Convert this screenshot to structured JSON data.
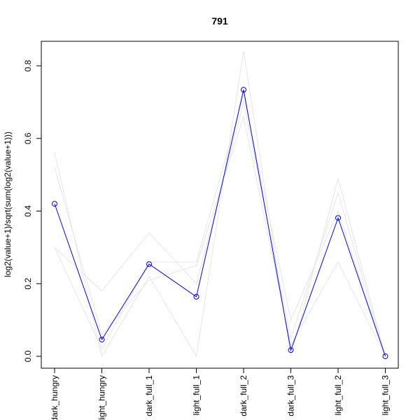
{
  "chart_data": {
    "type": "line",
    "title": "791",
    "xlabel": "",
    "ylabel": "log2(value+1)/sqrt(sum(log2(value+1)))",
    "categories": [
      "dark_hungry",
      "light_hungry",
      "dark_full_1",
      "light_full_1",
      "dark_full_2",
      "dark_full_3",
      "light_full_2",
      "light_full_3"
    ],
    "ylim": [
      0.0,
      0.8
    ],
    "yticks": [
      "0.0",
      "0.2",
      "0.4",
      "0.6",
      "0.8"
    ],
    "grid": false,
    "legend": "none",
    "highlight_color": "#0000ff",
    "background_color": "#e6e6e6",
    "series": [
      {
        "values": [
          0.42,
          0.046,
          0.254,
          0.164,
          0.734,
          0.017,
          0.381,
          0.0
        ],
        "highlight": true
      },
      {
        "values": [
          0.56,
          0.0,
          0.22,
          0.0,
          0.84,
          0.0,
          0.49,
          0.0
        ],
        "highlight": false
      },
      {
        "values": [
          0.52,
          0.06,
          0.21,
          0.25,
          0.66,
          0.03,
          0.26,
          0.0
        ],
        "highlight": false
      },
      {
        "values": [
          0.3,
          0.18,
          0.34,
          0.2,
          0.7,
          0.05,
          0.45,
          0.0
        ],
        "highlight": false
      },
      {
        "values": [
          0.3,
          0.02,
          0.26,
          0.26,
          0.72,
          0.1,
          0.4,
          0.0
        ],
        "highlight": false
      }
    ]
  }
}
